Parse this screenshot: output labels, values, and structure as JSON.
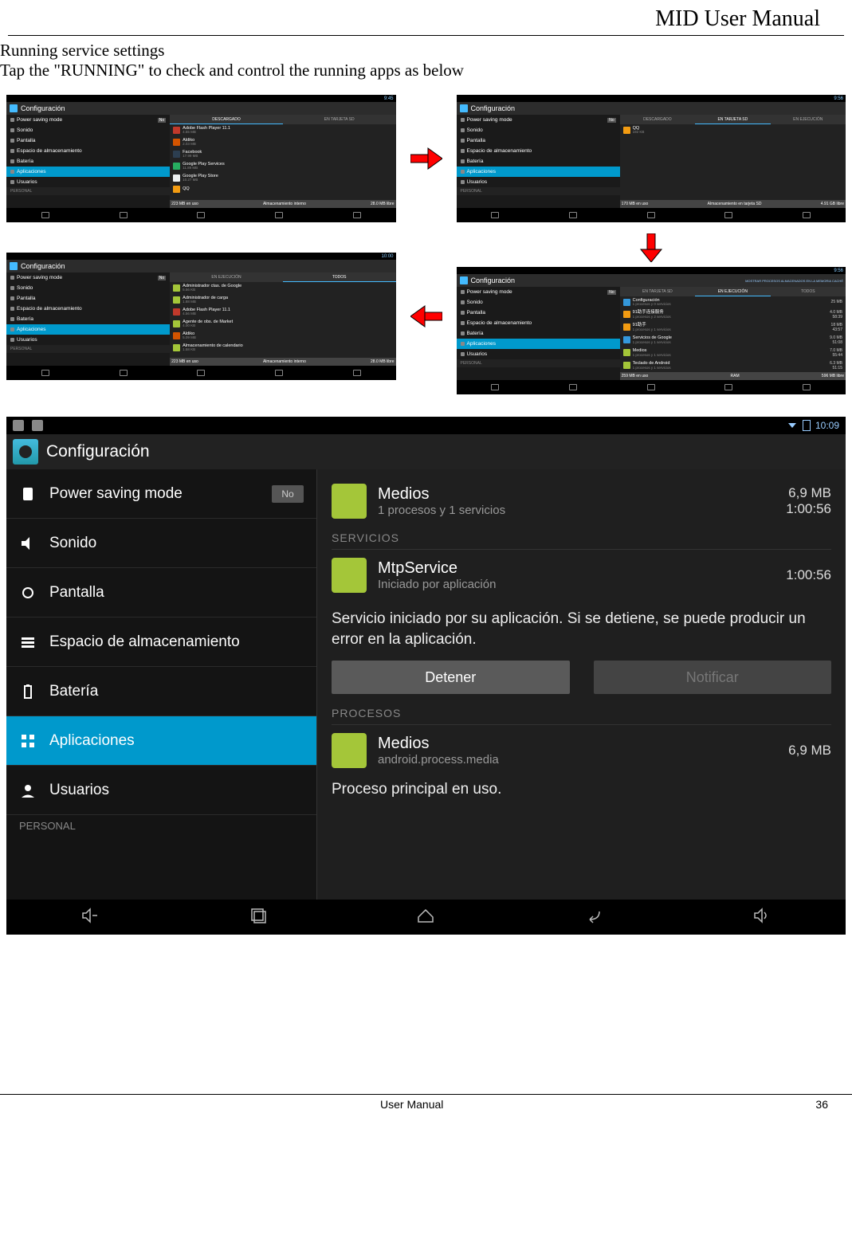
{
  "header_title": "MID User Manual",
  "intro": {
    "title": "Running service settings",
    "text": "Tap the \"RUNNING\" to check and control the running apps as below"
  },
  "sidebar_items": [
    {
      "icon": "power-icon",
      "label": "Power saving mode",
      "toggle": "No"
    },
    {
      "icon": "sound-icon",
      "label": "Sonido"
    },
    {
      "icon": "display-icon",
      "label": "Pantalla"
    },
    {
      "icon": "storage-icon",
      "label": "Espacio de almacenamiento"
    },
    {
      "icon": "battery-icon",
      "label": "Batería"
    },
    {
      "icon": "apps-icon",
      "label": "Aplicaciones",
      "selected": true
    },
    {
      "icon": "users-icon",
      "label": "Usuarios"
    }
  ],
  "sidebar_section": "PERSONAL",
  "config_title": "Configuración",
  "thumb1": {
    "time": "9:45",
    "tabs": [
      {
        "label": "DESCARGADO",
        "active": true
      },
      {
        "label": "EN TARJETA SD"
      }
    ],
    "apps": [
      {
        "name": "Adobe Flash Player 11.1",
        "sub": "4.55 MB",
        "color": "#c0392b"
      },
      {
        "name": "Aldiko",
        "sub": "2.03 MB",
        "color": "#d35400"
      },
      {
        "name": "Facebook",
        "sub": "17.99 MB",
        "color": "#2c3e50"
      },
      {
        "name": "Google Play Services",
        "sub": "11.89 MB",
        "color": "#27ae60"
      },
      {
        "name": "Google Play Store",
        "sub": "10.27 MB",
        "color": "#ecf0f1"
      },
      {
        "name": "QQ",
        "sub": "",
        "color": "#f39c12"
      }
    ],
    "storage": {
      "left": "223 MB en uso",
      "right": "28.0 MB libre",
      "label": "Almacenamiento interno"
    }
  },
  "thumb2": {
    "time": "9:56",
    "tabs": [
      {
        "label": "DESCARGADO"
      },
      {
        "label": "EN TARJETA SD",
        "active": true
      },
      {
        "label": "EN EJECUCIÓN"
      }
    ],
    "apps": [
      {
        "name": "QQ",
        "sub": "192 KB",
        "color": "#f39c12"
      }
    ],
    "storage": {
      "left": "170 MB en uso",
      "right": "4.91 GB libre",
      "label": "Almacenamiento en tarjeta SD"
    }
  },
  "thumb3": {
    "time": "9:56",
    "header_link": "MOSTRAR PROCESOS ALMACENADOS EN LA MEMORIA CACHÉ",
    "tabs": [
      {
        "label": "EN TARJETA SD"
      },
      {
        "label": "EN EJECUCIÓN",
        "active": true
      },
      {
        "label": "TODOS"
      }
    ],
    "apps": [
      {
        "name": "Configuración",
        "sub": "1 procesos y 0 servicios",
        "rt1": "25 MB",
        "rt2": "",
        "color": "#3498db"
      },
      {
        "name": "91助手连接服务",
        "sub": "1 procesos y 2 servicios",
        "rt1": "4.0 MB",
        "rt2": "58:39",
        "color": "#f39c12"
      },
      {
        "name": "91助手",
        "sub": "1 procesos y 1 servicios",
        "rt1": "18 MB",
        "rt2": "43:57",
        "color": "#f39c12"
      },
      {
        "name": "Servicios de Google",
        "sub": "1 procesos y 1 servicios",
        "rt1": "9.0 MB",
        "rt2": "51:08",
        "color": "#3498db"
      },
      {
        "name": "Medios",
        "sub": "1 procesos y 1 servicios",
        "rt1": "7.0 MB",
        "rt2": "55:44",
        "color": "#a4c639"
      },
      {
        "name": "Teclado de Android",
        "sub": "1 procesos y 1 servicios",
        "rt1": "6.3 MB",
        "rt2": "51:15",
        "color": "#a4c639"
      }
    ],
    "storage": {
      "left": "259 MB en uso",
      "right": "596 MB libre",
      "label": "RAM"
    }
  },
  "thumb4": {
    "time": "10:00",
    "tabs": [
      {
        "label": "EN EJECUCIÓN"
      },
      {
        "label": "TODOS",
        "active": true
      }
    ],
    "apps": [
      {
        "name": "Administrador ctas. de Google",
        "sub": "5.56 KB",
        "color": "#a4c639"
      },
      {
        "name": "Administrador de carga",
        "sub": "1.88 MB",
        "color": "#a4c639"
      },
      {
        "name": "Adobe Flash Player 11.1",
        "sub": "4.56 MB",
        "color": "#c0392b"
      },
      {
        "name": "Agente de obs. de Market",
        "sub": "4.00 KB",
        "color": "#a4c639"
      },
      {
        "name": "Aldiko",
        "sub": "5.09 MB",
        "color": "#d35400"
      },
      {
        "name": "Almacenamiento de calendario",
        "sub": "1.58 KB",
        "color": "#a4c639"
      }
    ],
    "storage": {
      "left": "223 MB en uso",
      "right": "28.0 MB libre",
      "label": "Almacenamiento interno"
    }
  },
  "big": {
    "time": "10:09",
    "title": "Configuración",
    "media": {
      "name": "Medios",
      "sub": "1 procesos y 1 servicios",
      "size": "6,9 MB",
      "time": "1:00:56"
    },
    "section_servicios": "SERVICIOS",
    "service": {
      "name": "MtpService",
      "sub": "Iniciado por aplicación",
      "time": "1:00:56"
    },
    "service_desc": "Servicio iniciado por su aplicación. Si se detiene, se puede producir un error en la aplicación.",
    "btn_stop": "Detener",
    "btn_notify": "Notificar",
    "section_procesos": "PROCESOS",
    "process": {
      "name": "Medios",
      "sub": "android.process.media",
      "size": "6,9 MB"
    },
    "process_desc": "Proceso principal en uso."
  },
  "footer": {
    "center": "User Manual",
    "page": "36"
  },
  "arrow_color": "#ff0000"
}
